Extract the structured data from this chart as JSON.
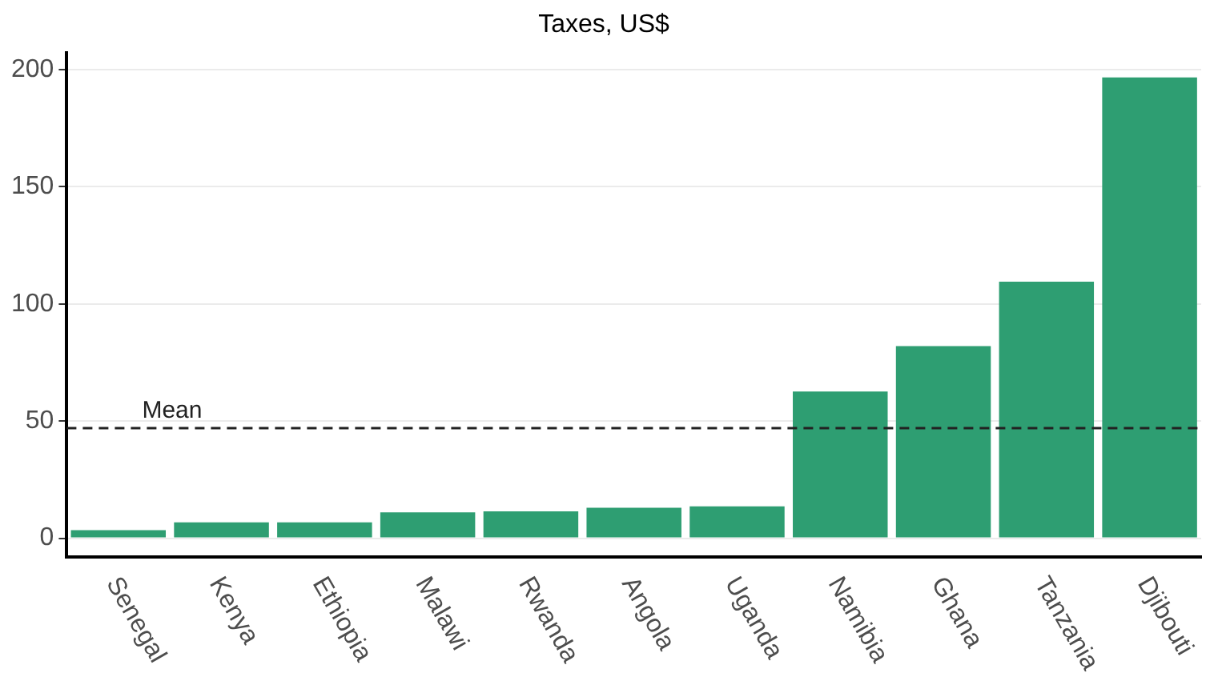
{
  "chart_data": {
    "type": "bar",
    "title": "Taxes, US$",
    "categories": [
      "Senegal",
      "Kenya",
      "Ethiopia",
      "Malawi",
      "Rwanda",
      "Angola",
      "Uganda",
      "Namibia",
      "Ghana",
      "Tanzania",
      "Djibouti"
    ],
    "values": [
      3.4,
      6.8,
      6.8,
      11,
      11.5,
      13,
      13.6,
      62.6,
      82,
      109.5,
      196.6
    ],
    "color": "#2e9e72",
    "ylim": [
      -8,
      207
    ],
    "yticks": [
      0,
      50,
      100,
      150,
      200
    ],
    "grid": "y",
    "legend": false,
    "ref_lines": [
      {
        "axis": "y",
        "value": 47,
        "label": "Mean",
        "line_style": "dashed",
        "color": "#222222"
      }
    ]
  }
}
